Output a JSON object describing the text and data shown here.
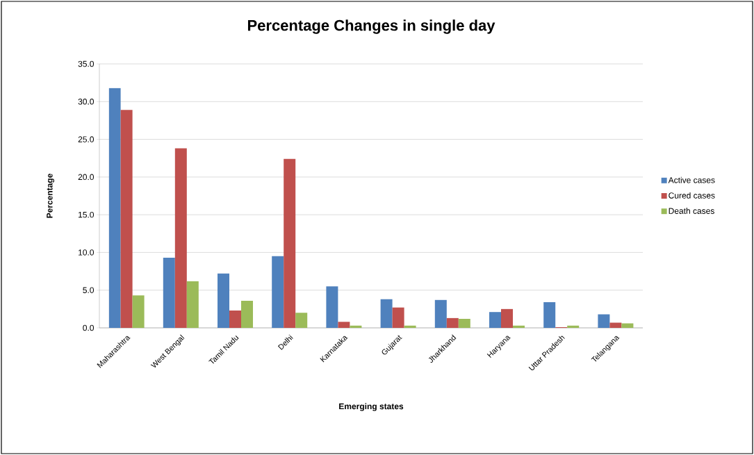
{
  "chart_data": {
    "type": "bar",
    "title": "Percentage Changes in single day",
    "xlabel": "Emerging states",
    "ylabel": "Percentage",
    "categories": [
      "Maharashtra",
      "West Bengal",
      "Tamil Nadu",
      "Delhi",
      "Karnataka",
      "Gujarat",
      "Jharkhand",
      "Haryana",
      "Uttar Pradesh",
      "Telangana"
    ],
    "series": [
      {
        "name": "Active cases",
        "color": "#4f81bd",
        "values": [
          31.8,
          9.3,
          7.2,
          9.5,
          5.5,
          3.8,
          3.7,
          2.1,
          3.4,
          1.8
        ]
      },
      {
        "name": "Cured cases",
        "color": "#c0504d",
        "values": [
          28.9,
          23.8,
          2.3,
          22.4,
          0.8,
          2.7,
          1.3,
          2.5,
          0.1,
          0.7
        ]
      },
      {
        "name": "Death cases",
        "color": "#9bbb59",
        "values": [
          4.3,
          6.2,
          3.6,
          2.0,
          0.3,
          0.3,
          1.2,
          0.3,
          0.3,
          0.6
        ]
      }
    ],
    "ylim": [
      0,
      35
    ],
    "yticks": [
      {
        "value": 0,
        "label": "0.0"
      },
      {
        "value": 5,
        "label": "5.0"
      },
      {
        "value": 10,
        "label": "10.0"
      },
      {
        "value": 15,
        "label": "15.0"
      },
      {
        "value": 20,
        "label": "20.0"
      },
      {
        "value": 25,
        "label": "25.0"
      },
      {
        "value": 30,
        "label": "30.0"
      },
      {
        "value": 35,
        "label": "35.0"
      }
    ],
    "grid": "y",
    "legend": "right"
  }
}
